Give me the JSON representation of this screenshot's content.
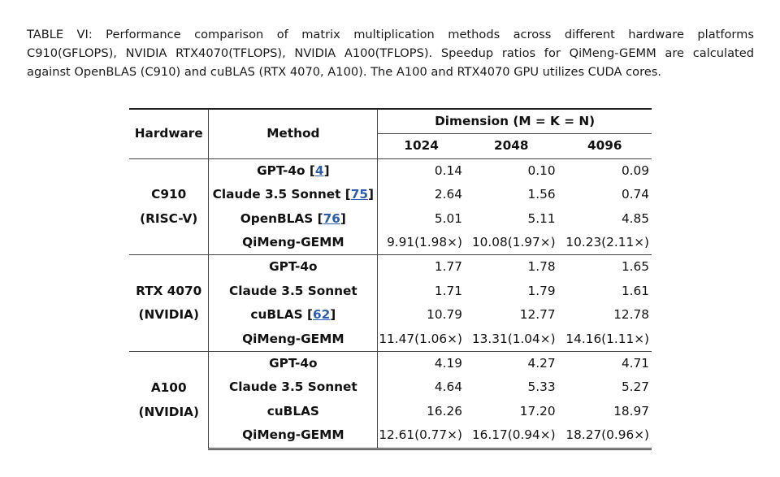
{
  "caption": {
    "line1": "TABLE VI: Performance comparison of matrix multiplication methods across different hardware platforms",
    "line2": "C910(GFLOPS), NVIDIA RTX4070(TFLOPS), NVIDIA A100(TFLOPS). Speedup ratios for QiMeng-GEMM are calculated",
    "line3": "against OpenBLAS (C910) and cuBLAS (RTX 4070, A100). The A100 and RTX4070 GPU utilizes CUDA cores."
  },
  "table": {
    "headers": {
      "hardware": "Hardware",
      "method": "Method",
      "dimension": "Dimension (M = K = N)",
      "sizes": [
        "1024",
        "2048",
        "4096"
      ]
    },
    "groups": [
      {
        "hardware_line1": "C910",
        "hardware_line2": "(RISC-V)",
        "rows": [
          {
            "method": "GPT-4o",
            "ref": "4",
            "values": [
              "0.14",
              "0.10",
              "0.09"
            ]
          },
          {
            "method": "Claude 3.5 Sonnet",
            "ref": "75",
            "values": [
              "2.64",
              "1.56",
              "0.74"
            ]
          },
          {
            "method": "OpenBLAS",
            "ref": "76",
            "values": [
              "5.01",
              "5.11",
              "4.85"
            ]
          },
          {
            "method": "QiMeng-GEMM",
            "ref": "",
            "values": [
              "9.91(1.98×)",
              "10.08(1.97×)",
              "10.23(2.11×)"
            ]
          }
        ]
      },
      {
        "hardware_line1": "RTX 4070",
        "hardware_line2": "(NVIDIA)",
        "rows": [
          {
            "method": "GPT-4o",
            "ref": "",
            "values": [
              "1.77",
              "1.78",
              "1.65"
            ]
          },
          {
            "method": "Claude 3.5 Sonnet",
            "ref": "",
            "values": [
              "1.71",
              "1.79",
              "1.61"
            ]
          },
          {
            "method": "cuBLAS",
            "ref": "62",
            "values": [
              "10.79",
              "12.77",
              "12.78"
            ]
          },
          {
            "method": "QiMeng-GEMM",
            "ref": "",
            "values": [
              "11.47(1.06×)",
              "13.31(1.04×)",
              "14.16(1.11×)"
            ]
          }
        ]
      },
      {
        "hardware_line1": "A100",
        "hardware_line2": "(NVIDIA)",
        "rows": [
          {
            "method": "GPT-4o",
            "ref": "",
            "values": [
              "4.19",
              "4.27",
              "4.71"
            ]
          },
          {
            "method": "Claude 3.5 Sonnet",
            "ref": "",
            "values": [
              "4.64",
              "5.33",
              "5.27"
            ]
          },
          {
            "method": "cuBLAS",
            "ref": "",
            "values": [
              "16.26",
              "17.20",
              "18.97"
            ]
          },
          {
            "method": "QiMeng-GEMM",
            "ref": "",
            "values": [
              "12.61(0.77×)",
              "16.17(0.94×)",
              "18.27(0.96×)"
            ]
          }
        ]
      }
    ]
  }
}
